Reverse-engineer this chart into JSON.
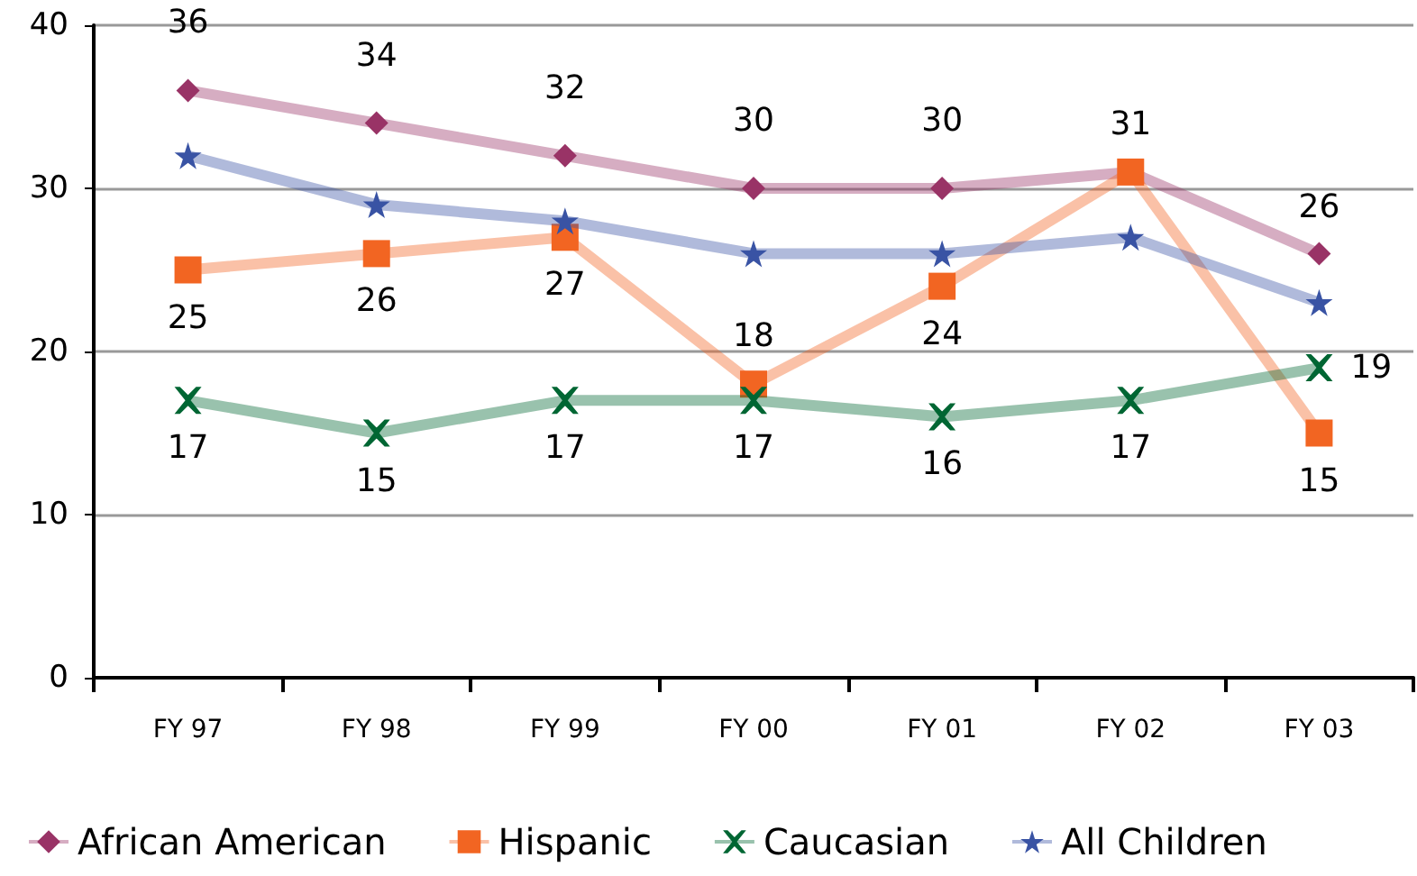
{
  "chart_data": {
    "type": "line",
    "categories": [
      "FY 97",
      "FY 98",
      "FY 99",
      "FY 00",
      "FY 01",
      "FY 02",
      "FY 03"
    ],
    "series": [
      {
        "name": "African American",
        "color": "#993366",
        "marker": "diamond",
        "value_labels": [
          "36",
          "34",
          "32",
          "30",
          "30",
          null,
          "26"
        ],
        "values": [
          36,
          34,
          32,
          30,
          30,
          31,
          26
        ]
      },
      {
        "name": "Hispanic",
        "color": "#f26522",
        "marker": "square",
        "data_labels": true,
        "values": [
          25,
          26,
          27,
          18,
          24,
          31,
          15
        ]
      },
      {
        "name": "Caucasian",
        "color": "#006633",
        "marker": "cross",
        "data_labels": true,
        "values": [
          17,
          15,
          17,
          17,
          16,
          17,
          19
        ]
      },
      {
        "name": "All Children",
        "color": "#3953a4",
        "marker": "star",
        "values": [
          32,
          29,
          28,
          26,
          26,
          27,
          23
        ]
      }
    ],
    "ylim": [
      0,
      40
    ],
    "yticks": [
      0,
      10,
      20,
      30,
      40
    ],
    "grid": "y",
    "legend": "bottom"
  }
}
